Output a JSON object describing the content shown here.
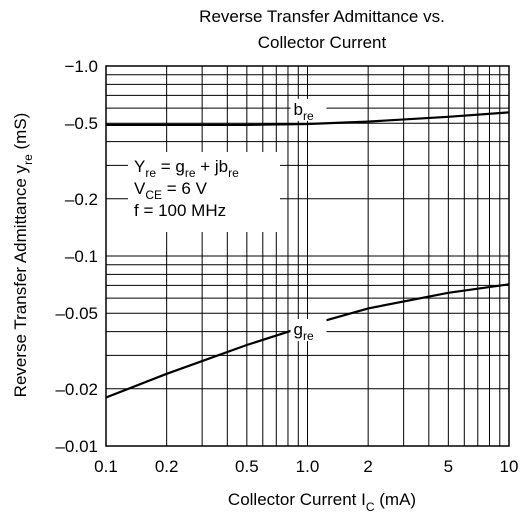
{
  "chart_data": {
    "type": "line",
    "title_lines": [
      "Reverse Transfer Admittance vs.",
      "Collector Current"
    ],
    "xlabel": {
      "main": "Collector Current  I",
      "sub": "C",
      "unit": "  (mA)"
    },
    "ylabel": {
      "main": "Reverse Transfer Admittance  y",
      "sub": "re",
      "unit": "  (mS)"
    },
    "xscale": "log",
    "yscale": "log",
    "xlim": [
      0.1,
      10
    ],
    "ylim": [
      -0.01,
      -1.0
    ],
    "xticks": [
      {
        "v": 0.1,
        "label": "0.1"
      },
      {
        "v": 0.2,
        "label": "0.2"
      },
      {
        "v": 0.5,
        "label": "0.5"
      },
      {
        "v": 1.0,
        "label": "1.0"
      },
      {
        "v": 2,
        "label": "2"
      },
      {
        "v": 5,
        "label": "5"
      },
      {
        "v": 10,
        "label": "10"
      }
    ],
    "yticks": [
      {
        "v": -1.0,
        "label": "−1.0"
      },
      {
        "v": -0.5,
        "label": "–0.5"
      },
      {
        "v": -0.2,
        "label": "–0.2"
      },
      {
        "v": -0.1,
        "label": "–0.1"
      },
      {
        "v": -0.05,
        "label": "–0.05"
      },
      {
        "v": -0.02,
        "label": "–0.02"
      },
      {
        "v": -0.01,
        "label": "–0.01"
      }
    ],
    "grid": true,
    "series": [
      {
        "label_main": "b",
        "label_sub": "re",
        "x": [
          0.1,
          0.2,
          0.5,
          1.0,
          2,
          5,
          10
        ],
        "y": [
          -0.49,
          -0.49,
          -0.49,
          -0.495,
          -0.51,
          -0.54,
          -0.57
        ]
      },
      {
        "label_main": "g",
        "label_sub": "re",
        "x": [
          0.1,
          0.2,
          0.5,
          1.0,
          2,
          5,
          10
        ],
        "y": [
          -0.018,
          -0.024,
          -0.034,
          -0.043,
          -0.053,
          -0.064,
          -0.071
        ]
      }
    ],
    "annotation_lines": [
      {
        "main": "Y",
        "sub": "re",
        "rest": " = g",
        "sub2": "re",
        "rest2": " + jb",
        "sub3": "re",
        "rest3": ""
      },
      {
        "main": "V",
        "sub": "CE",
        "rest": " = 6 V",
        "sub2": "",
        "rest2": "",
        "sub3": "",
        "rest3": ""
      },
      {
        "main": "f = 100 MHz",
        "sub": "",
        "rest": "",
        "sub2": "",
        "rest2": "",
        "sub3": "",
        "rest3": ""
      }
    ]
  }
}
